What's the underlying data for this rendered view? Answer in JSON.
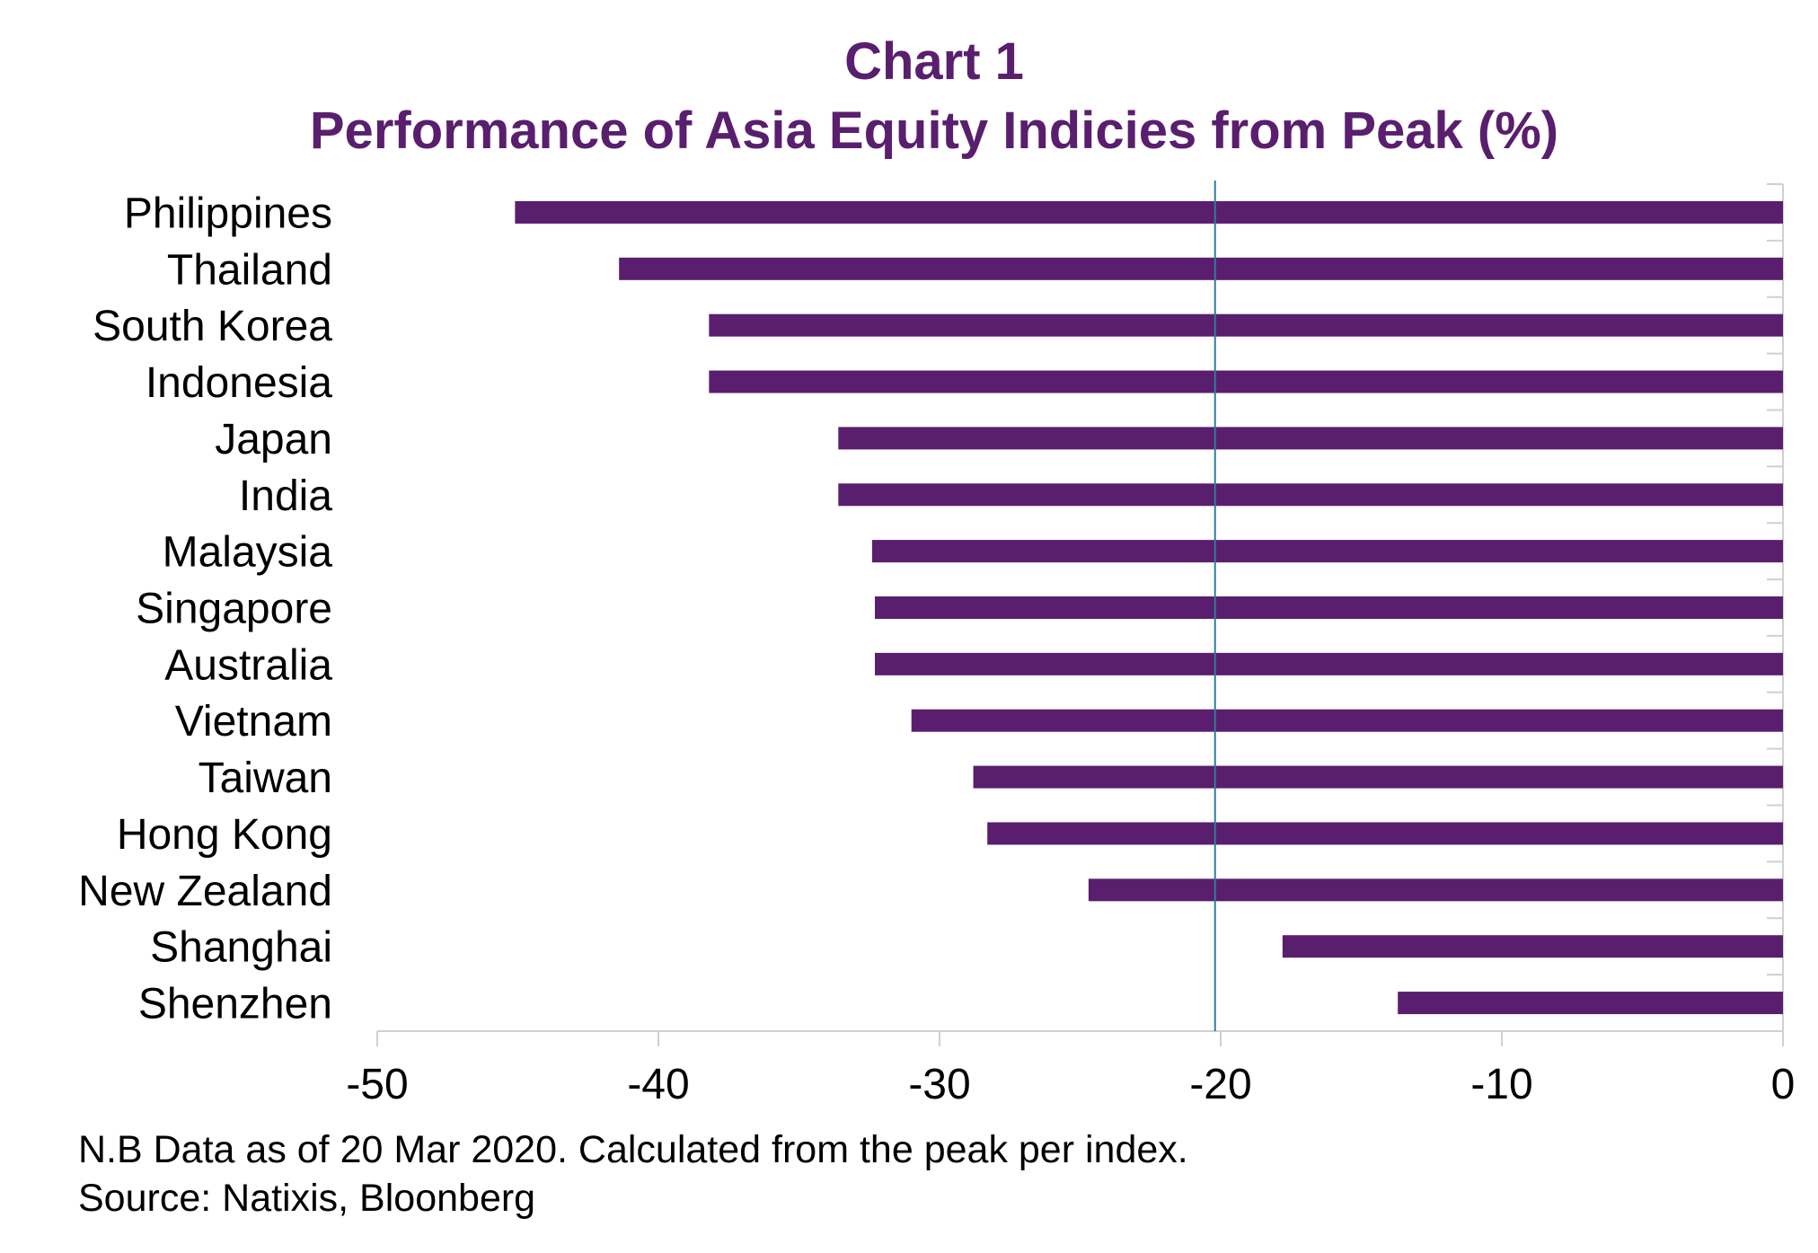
{
  "chart_data": {
    "type": "bar",
    "orientation": "horizontal",
    "title": "Chart 1",
    "subtitle": "Performance of Asia Equity Indicies from Peak (%)",
    "categories": [
      "Philippines",
      "Thailand",
      "South Korea",
      "Indonesia",
      "Japan",
      "India",
      "Malaysia",
      "Singapore",
      "Australia",
      "Vietnam",
      "Taiwan",
      "Hong Kong",
      "New Zealand",
      "Shanghai",
      "Shenzhen"
    ],
    "values": [
      -45.1,
      -41.4,
      -38.2,
      -38.2,
      -33.6,
      -33.6,
      -32.4,
      -32.3,
      -32.3,
      -31.0,
      -28.8,
      -28.3,
      -24.7,
      -17.8,
      -13.7
    ],
    "xlim": [
      -50,
      0
    ],
    "xticks": [
      -50,
      -40,
      -30,
      -20,
      -10,
      0
    ],
    "xtick_labels": [
      "-50",
      "-40",
      "-30",
      "-20",
      "-10",
      "0"
    ],
    "reference_line": -20.2,
    "grid": false,
    "bar_color": "#5a1e6e",
    "title_color": "#5a1e6e",
    "reference_line_color": "#2e7d9a"
  },
  "footnote": {
    "line1": "N.B Data as of 20 Mar 2020. Calculated from the peak per index.",
    "line2": "Source: Natixis, Bloonberg"
  }
}
